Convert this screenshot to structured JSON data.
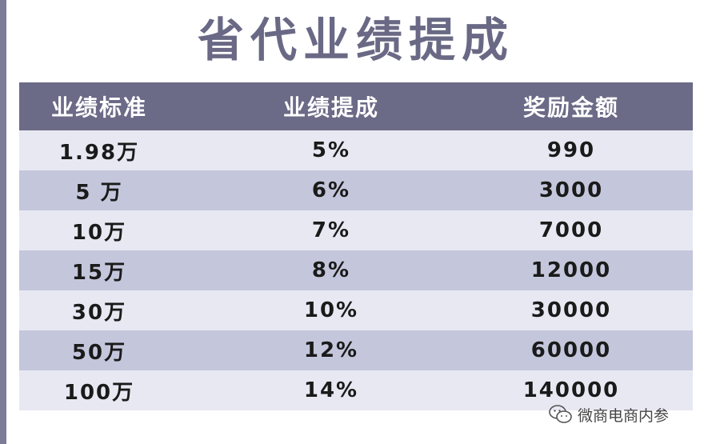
{
  "title": "省代业绩提成",
  "table": {
    "headers": [
      "业绩标准",
      "业绩提成",
      "奖励金额"
    ],
    "rows": [
      [
        "1.98万",
        "5%",
        "990"
      ],
      [
        "5 万",
        "6%",
        "3000"
      ],
      [
        "10万",
        "7%",
        "7000"
      ],
      [
        "15万",
        "8%",
        "12000"
      ],
      [
        "30万",
        "10%",
        "30000"
      ],
      [
        "50万",
        "12%",
        "60000"
      ],
      [
        "100万",
        "14%",
        "140000"
      ]
    ]
  },
  "watermark": {
    "icon": "wechat-icon",
    "text": "微商电商内参"
  },
  "colors": {
    "title": "#6a6985",
    "header_bg": "#6b6a87",
    "row_light": "#e7e8f1",
    "row_dark": "#c4c7dc"
  }
}
